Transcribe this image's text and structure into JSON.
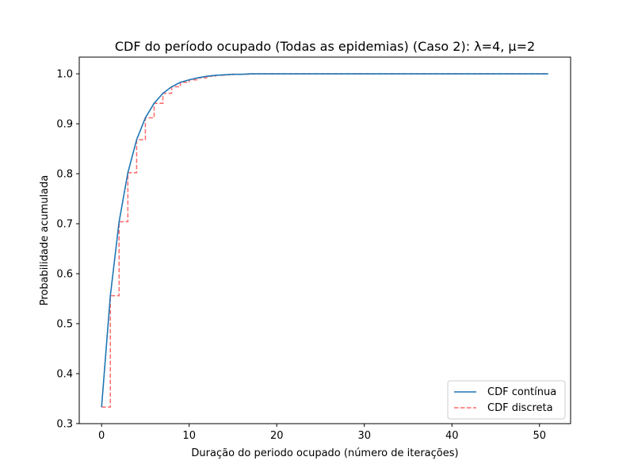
{
  "chart_data": {
    "type": "line",
    "title": "CDF do período ocupado (Todas as epidemias) (Caso 2): λ=4, μ=2",
    "xlabel": "Duração do periodo ocupado (número de iterações)",
    "ylabel": "Probabilidade acumulada",
    "xlim": [
      -2.55,
      53.55
    ],
    "ylim": [
      0.2999,
      1.0334
    ],
    "xticks": [
      0,
      10,
      20,
      30,
      40,
      50
    ],
    "xtick_labels": [
      "0",
      "10",
      "20",
      "30",
      "40",
      "50"
    ],
    "yticks": [
      0.3,
      0.4,
      0.5,
      0.6,
      0.7,
      0.8,
      0.9,
      1.0
    ],
    "ytick_labels": [
      "0.3",
      "0.4",
      "0.5",
      "0.6",
      "0.7",
      "0.8",
      "0.9",
      "1.0"
    ],
    "grid": false,
    "legend_position": "lower right",
    "x": [
      0,
      1,
      2,
      3,
      4,
      5,
      6,
      7,
      8,
      9,
      10,
      11,
      12,
      13,
      14,
      15,
      16,
      17,
      18,
      19,
      20,
      21,
      22,
      23,
      24,
      25,
      26,
      27,
      28,
      29,
      30,
      31,
      32,
      33,
      34,
      35,
      36,
      37,
      38,
      39,
      40,
      41,
      42,
      43,
      44,
      45,
      46,
      47,
      48,
      49,
      50,
      51
    ],
    "series": [
      {
        "name": "CDF contínua",
        "style": "solid",
        "color": "#1f77b4",
        "values": [
          0.333,
          0.556,
          0.704,
          0.802,
          0.868,
          0.912,
          0.941,
          0.961,
          0.974,
          0.983,
          0.988,
          0.992,
          0.995,
          0.997,
          0.998,
          0.999,
          0.999,
          1.0,
          1.0,
          1.0,
          1.0,
          1.0,
          1.0,
          1.0,
          1.0,
          1.0,
          1.0,
          1.0,
          1.0,
          1.0,
          1.0,
          1.0,
          1.0,
          1.0,
          1.0,
          1.0,
          1.0,
          1.0,
          1.0,
          1.0,
          1.0,
          1.0,
          1.0,
          1.0,
          1.0,
          1.0,
          1.0,
          1.0,
          1.0,
          1.0,
          1.0,
          1.0
        ]
      },
      {
        "name": "CDF discreta",
        "style": "dashed-step",
        "color": "#ff6b6b",
        "values": [
          0.333,
          0.556,
          0.704,
          0.802,
          0.868,
          0.912,
          0.941,
          0.961,
          0.974,
          0.983,
          0.988,
          0.992,
          0.995,
          0.997,
          0.998,
          0.999,
          0.999,
          1.0,
          1.0,
          1.0,
          1.0,
          1.0,
          1.0,
          1.0,
          1.0,
          1.0,
          1.0,
          1.0,
          1.0,
          1.0,
          1.0,
          1.0,
          1.0,
          1.0,
          1.0,
          1.0,
          1.0,
          1.0,
          1.0,
          1.0,
          1.0,
          1.0,
          1.0,
          1.0,
          1.0,
          1.0,
          1.0,
          1.0,
          1.0,
          1.0,
          1.0,
          1.0
        ]
      }
    ]
  }
}
